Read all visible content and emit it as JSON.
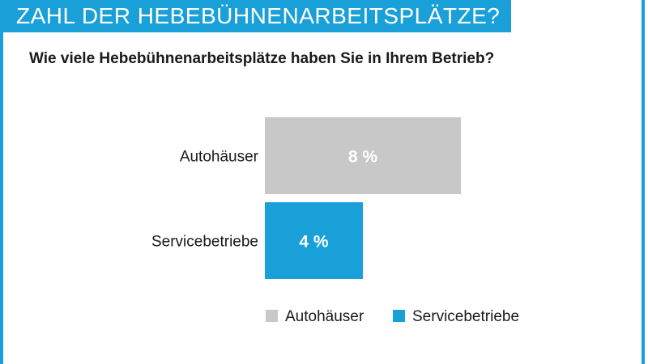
{
  "header": {
    "title": "ZAHL DER HEBEBÜHNENARBEITSPLÄTZE?",
    "subtitle": "Wie viele Hebebühnenarbeitsplätze haben Sie in Ihrem Betrieb?"
  },
  "colors": {
    "accent": "#1aa0d8",
    "autohaeuser": "#c8c8c8",
    "servicebetriebe": "#1aa0d8"
  },
  "chart_data": {
    "type": "bar",
    "orientation": "horizontal",
    "categories": [
      "Autohäuser",
      "Servicebetriebe"
    ],
    "values": [
      8,
      4
    ],
    "value_labels": [
      "8 %",
      "4 %"
    ],
    "unit": "%",
    "title": "ZAHL DER HEBEBÜHNENARBEITSPLÄTZE?",
    "subtitle": "Wie viele Hebebühnenarbeitsplätze haben Sie in Ihrem Betrieb?",
    "xlim": [
      0,
      8
    ],
    "grid": false,
    "legend": {
      "placement": "bottom",
      "entries": [
        "Autohäuser",
        "Servicebetriebe"
      ]
    }
  }
}
